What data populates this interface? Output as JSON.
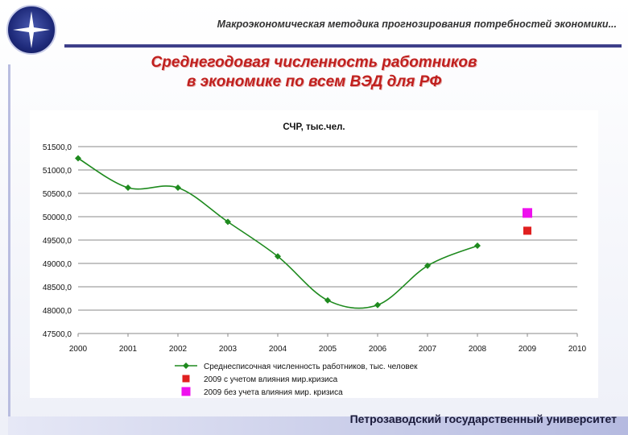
{
  "header": {
    "title": "Макроэкономическая методика прогнозирования потребностей экономики..."
  },
  "slide": {
    "title_line1": "Среднегодовая численность работников",
    "title_line2": "в экономике по всем ВЭД для РФ"
  },
  "footer": {
    "university": "Петрозаводский государственный университет"
  },
  "colors": {
    "accent_bar": "#3d3f8a",
    "title_red": "#c0201e",
    "series_green": "#1e8a1e",
    "crisis_red": "#e02020",
    "nocrisis_magenta": "#ee11ee"
  },
  "chart_data": {
    "type": "line",
    "title": "СЧР, тыс.чел.",
    "xlabel": "",
    "ylabel": "",
    "categories": [
      "2000",
      "2001",
      "2002",
      "2003",
      "2004",
      "2005",
      "2006",
      "2007",
      "2008",
      "2009",
      "2010"
    ],
    "ylim": [
      47500,
      51500
    ],
    "yticks": [
      "47500,0",
      "48000,0",
      "48500,0",
      "49000,0",
      "49500,0",
      "50000,0",
      "50500,0",
      "51000,0",
      "51500,0"
    ],
    "ytick_values": [
      47500,
      48000,
      48500,
      49000,
      49500,
      50000,
      50500,
      51000,
      51500
    ],
    "grid": true,
    "legend_position": "bottom",
    "series": [
      {
        "name": "Среднесписочная численность работников, тыс. человек",
        "marker": "diamond",
        "color": "#1e8a1e",
        "x": [
          "2000",
          "2001",
          "2002",
          "2003",
          "2004",
          "2005",
          "2006",
          "2007",
          "2008"
        ],
        "values": [
          51250,
          50620,
          50620,
          49890,
          49150,
          48210,
          48110,
          48950,
          49380
        ]
      },
      {
        "name": "2009 с учетом влияния мир.кризиса",
        "marker": "square",
        "color": "#e02020",
        "x": [
          "2009"
        ],
        "values": [
          49700
        ]
      },
      {
        "name": "2009 без учета влияния мир. кризиса",
        "marker": "square",
        "color": "#ee11ee",
        "x": [
          "2009"
        ],
        "values": [
          50080
        ]
      }
    ]
  }
}
